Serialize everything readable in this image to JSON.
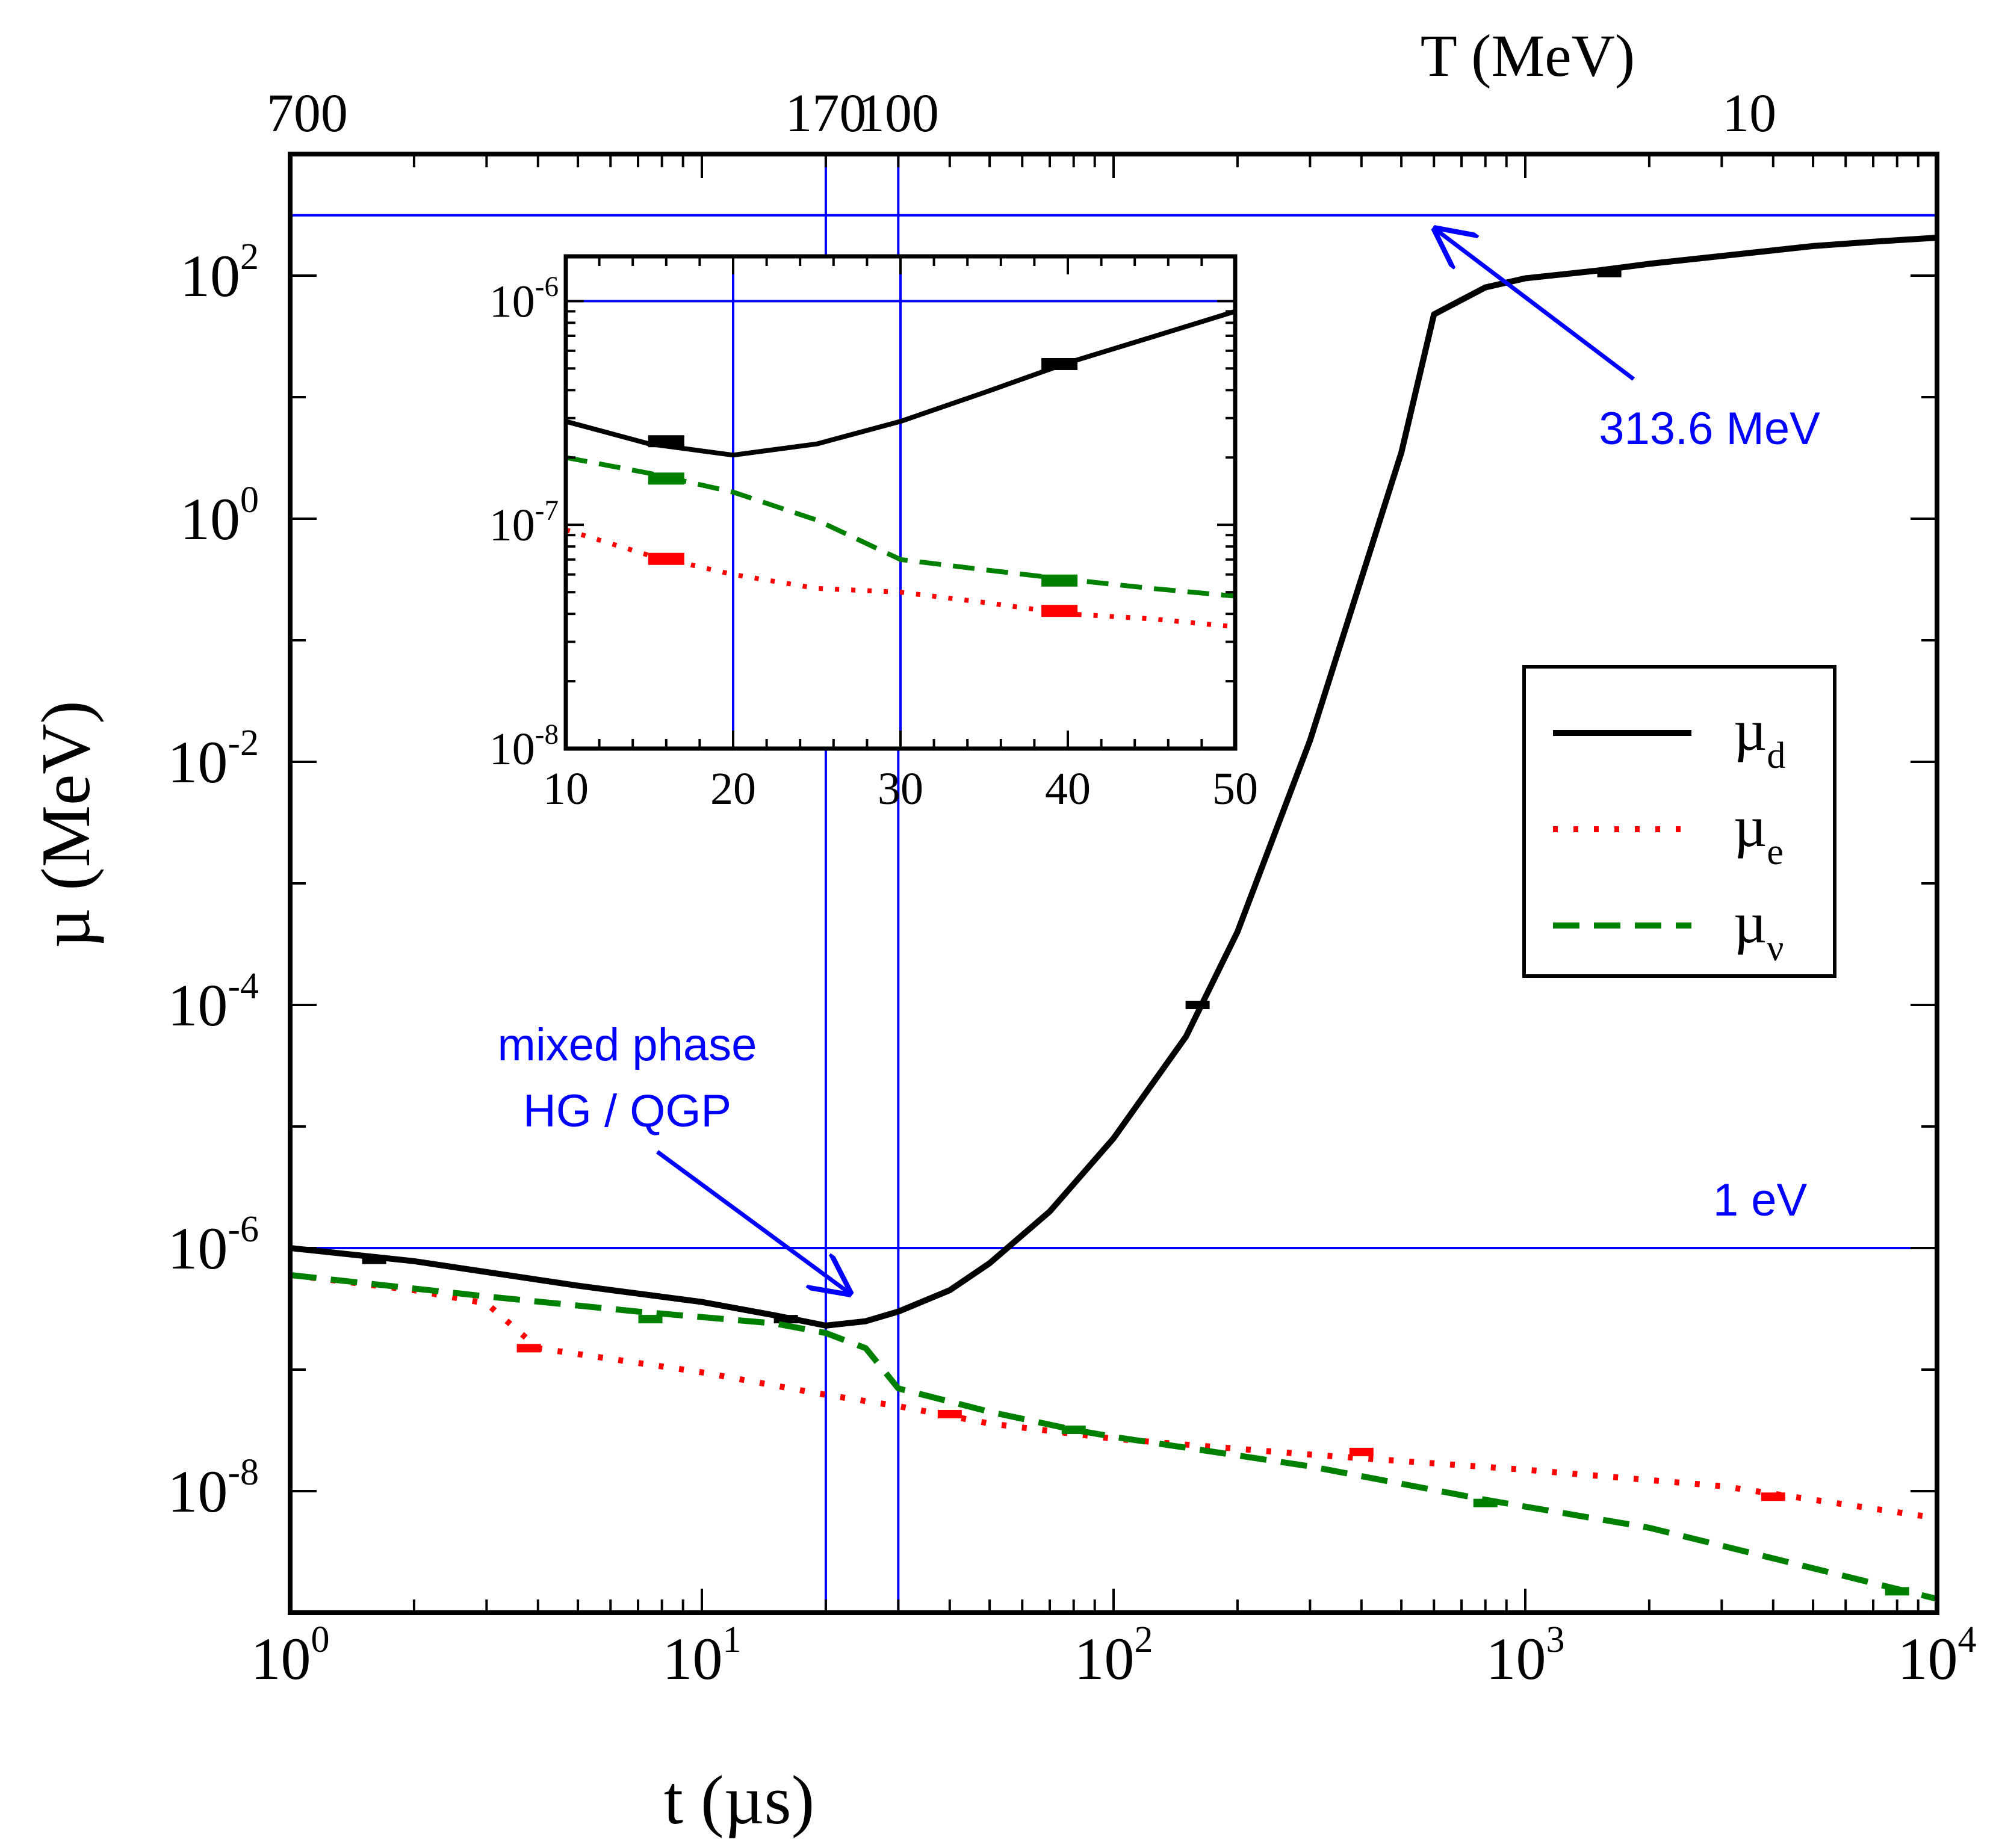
{
  "chart_data": {
    "type": "line",
    "main": {
      "xlabel": "t (µs)",
      "ylabel": "µ (MeV)",
      "toplabel": "T (MeV)",
      "xscale": "log",
      "yscale": "log",
      "xlim": [
        1,
        10000
      ],
      "ylim_log10": [
        -9,
        3
      ],
      "x_ticks": [
        {
          "v": 1,
          "base": "10",
          "exp": "0"
        },
        {
          "v": 10,
          "base": "10",
          "exp": "1"
        },
        {
          "v": 100,
          "base": "10",
          "exp": "2"
        },
        {
          "v": 1000,
          "base": "10",
          "exp": "3"
        },
        {
          "v": 10000,
          "base": "10",
          "exp": "4"
        }
      ],
      "y_ticks": [
        {
          "v": -8,
          "base": "10",
          "exp": "-8"
        },
        {
          "v": -6,
          "base": "10",
          "exp": "-6"
        },
        {
          "v": -4,
          "base": "10",
          "exp": "-4"
        },
        {
          "v": -2,
          "base": "10",
          "exp": "-2"
        },
        {
          "v": 0,
          "base": "10",
          "exp": "0"
        },
        {
          "v": 2,
          "base": "10",
          "exp": "2"
        }
      ],
      "top_ticks": [
        {
          "t": 1.1,
          "label": "700"
        },
        {
          "t": 20,
          "label": "170"
        },
        {
          "t": 30,
          "label": "100"
        },
        {
          "t": 3500,
          "label": "10"
        }
      ],
      "hlines": [
        313.6,
        1e-06
      ],
      "vlines": [
        20,
        30
      ],
      "series": [
        {
          "name": "µd",
          "sub": "d",
          "color": "#000000",
          "style": "solid",
          "points": [
            [
              1,
              1e-06
            ],
            [
              2,
              7.8e-07
            ],
            [
              5,
              4.9e-07
            ],
            [
              10,
              3.6e-07
            ],
            [
              15,
              2.8e-07
            ],
            [
              20,
              2.3e-07
            ],
            [
              25,
              2.5e-07
            ],
            [
              30,
              3e-07
            ],
            [
              40,
              4.5e-07
            ],
            [
              50,
              7.5e-07
            ],
            [
              70,
              2e-06
            ],
            [
              100,
              8e-06
            ],
            [
              150,
              5.5e-05
            ],
            [
              200,
              0.0004
            ],
            [
              300,
              0.015
            ],
            [
              500,
              3.5
            ],
            [
              600,
              48
            ],
            [
              800,
              80
            ],
            [
              1000,
              95
            ],
            [
              1500,
              110
            ],
            [
              2000,
              125
            ],
            [
              3000,
              145
            ],
            [
              5000,
              175
            ],
            [
              7000,
              190
            ],
            [
              10000,
              205
            ]
          ],
          "markers": [
            [
              1.6,
              8e-07
            ],
            [
              16,
              2.6e-07
            ],
            [
              160,
              0.0001
            ],
            [
              1600,
              105
            ]
          ]
        },
        {
          "name": "µe",
          "sub": "e",
          "color": "#ff0000",
          "style": "dotted",
          "points": [
            [
              1,
              6e-07
            ],
            [
              2,
              4.5e-07
            ],
            [
              3,
              3.5e-07
            ],
            [
              4,
              1.5e-07
            ],
            [
              10,
              9.5e-08
            ],
            [
              20,
              6.2e-08
            ],
            [
              30,
              5e-08
            ],
            [
              50,
              3.6e-08
            ],
            [
              100,
              2.7e-08
            ],
            [
              300,
              2e-08
            ],
            [
              1000,
              1.5e-08
            ],
            [
              3000,
              1.1e-08
            ],
            [
              10000,
              6e-09
            ]
          ],
          "markers": [
            [
              3.8,
              1.5e-07
            ],
            [
              40,
              4.3e-08
            ],
            [
              400,
              2.1e-08
            ],
            [
              4000,
              9e-09
            ]
          ]
        },
        {
          "name": "µν",
          "sub": "ν",
          "color": "#008000",
          "style": "dashed",
          "points": [
            [
              1,
              6e-07
            ],
            [
              3,
              4e-07
            ],
            [
              7,
              3e-07
            ],
            [
              15,
              2.4e-07
            ],
            [
              20,
              2e-07
            ],
            [
              25,
              1.5e-07
            ],
            [
              30,
              7e-08
            ],
            [
              50,
              4.5e-08
            ],
            [
              80,
              3.2e-08
            ],
            [
              100,
              2.8e-08
            ],
            [
              300,
              1.6e-08
            ],
            [
              800,
              8.5e-09
            ],
            [
              2000,
              5e-09
            ],
            [
              10000,
              1.3e-09
            ]
          ],
          "markers": [
            [
              7.5,
              2.6e-07
            ],
            [
              80,
              3.2e-08
            ],
            [
              800,
              8e-09
            ],
            [
              8000,
              1.5e-09
            ]
          ]
        }
      ],
      "annotations": {
        "ann_313": "313.6 MeV",
        "ann_1ev": "1 eV",
        "ann_mixed_1": "mixed phase",
        "ann_mixed_2": "HG / QGP"
      }
    },
    "inset": {
      "xlim": [
        10,
        50
      ],
      "ylim_log10": [
        -8,
        -5.8
      ],
      "x_ticks": [
        10,
        20,
        30,
        40,
        50
      ],
      "y_ticks": [
        {
          "v": -8,
          "base": "10",
          "exp": "-8"
        },
        {
          "v": -7,
          "base": "10",
          "exp": "-7"
        },
        {
          "v": -6,
          "base": "10",
          "exp": "-6"
        }
      ],
      "hlines": [
        1e-06
      ],
      "vlines": [
        20,
        30
      ],
      "series": [
        {
          "name": "µd",
          "color": "#000000",
          "style": "solid",
          "points": [
            [
              10,
              2.9e-07
            ],
            [
              15,
              2.3e-07
            ],
            [
              20,
              2.05e-07
            ],
            [
              25,
              2.3e-07
            ],
            [
              30,
              2.9e-07
            ],
            [
              35,
              3.9e-07
            ],
            [
              40,
              5.3e-07
            ],
            [
              45,
              6.9e-07
            ],
            [
              50,
              9e-07
            ]
          ],
          "markers": [
            [
              16,
              2.35e-07
            ],
            [
              39.5,
              5.2e-07
            ]
          ]
        },
        {
          "name": "µe",
          "color": "#ff0000",
          "style": "dotted",
          "points": [
            [
              10,
              9.5e-08
            ],
            [
              15,
              7.3e-08
            ],
            [
              20,
              6e-08
            ],
            [
              25,
              5.2e-08
            ],
            [
              30,
              5e-08
            ],
            [
              35,
              4.5e-08
            ],
            [
              40,
              4e-08
            ],
            [
              45,
              3.8e-08
            ],
            [
              50,
              3.5e-08
            ]
          ],
          "markers": [
            [
              16,
              7e-08
            ],
            [
              39.5,
              4.1e-08
            ]
          ]
        },
        {
          "name": "µν",
          "color": "#008000",
          "style": "dashed",
          "points": [
            [
              10,
              2e-07
            ],
            [
              15,
              1.7e-07
            ],
            [
              20,
              1.4e-07
            ],
            [
              25,
              1.05e-07
            ],
            [
              30,
              7e-08
            ],
            [
              35,
              6.3e-08
            ],
            [
              40,
              5.7e-08
            ],
            [
              45,
              5.2e-08
            ],
            [
              50,
              4.8e-08
            ]
          ],
          "markers": [
            [
              16,
              1.6e-07
            ],
            [
              39.5,
              5.6e-08
            ]
          ]
        }
      ]
    },
    "legend": {
      "placement": "right",
      "entries": [
        {
          "base": "µ",
          "sub": "d",
          "color": "#000000",
          "style": "solid"
        },
        {
          "base": "µ",
          "sub": "e",
          "color": "#ff0000",
          "style": "dotted"
        },
        {
          "base": "µ",
          "sub": "ν",
          "color": "#008000",
          "style": "dashed"
        }
      ]
    }
  }
}
